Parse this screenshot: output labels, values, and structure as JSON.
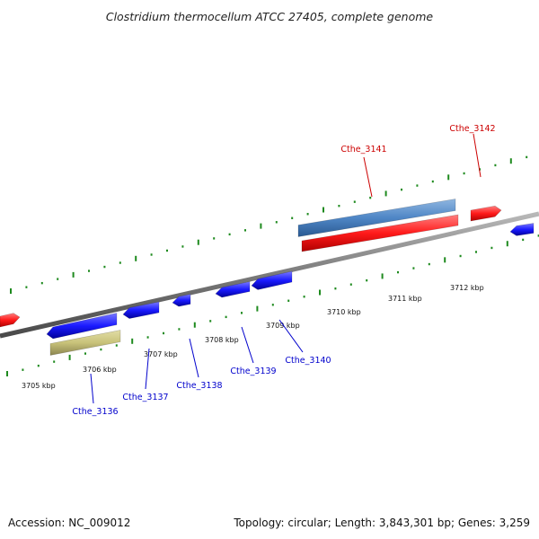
{
  "title": "Clostridium thermocellum ATCC 27405, complete genome",
  "footer": {
    "accession": "Accession: NC_009012",
    "summary": "Topology: circular; Length: 3,843,301 bp; Genes: 3,259"
  },
  "colors": {
    "backbone": "#7a7a7a",
    "ticks": "#1e8a1e",
    "gene_forward": "#ff1a1a",
    "gene_reverse": "#1a1aff",
    "feature_blue": "#4f86c6",
    "feature_olive": "#c8c27a",
    "label_forward": "#cc0000",
    "label_reverse": "#0000cc"
  },
  "kbp_labels": [
    "3705 kbp",
    "3706 kbp",
    "3707 kbp",
    "3708 kbp",
    "3709 kbp",
    "3710 kbp",
    "3711 kbp",
    "3712 kbp"
  ],
  "genes": {
    "forward_labels": [
      "Cthe_3141",
      "Cthe_3142"
    ],
    "reverse_labels": [
      "Cthe_3136",
      "Cthe_3137",
      "Cthe_3138",
      "Cthe_3139",
      "Cthe_3140"
    ]
  }
}
